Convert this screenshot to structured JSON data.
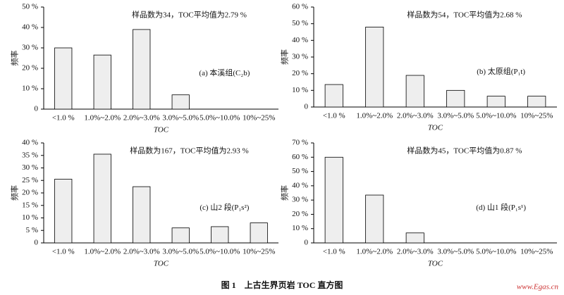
{
  "chart_data": [
    {
      "type": "bar",
      "annotation": "样品数为34，TOC平均值为2.79 %",
      "panel_label": "(a) 本溪组(C₂b)",
      "y_label": "频率",
      "x_label": "TOC",
      "categories": [
        "<1.0 %",
        "1.0%~2.0%",
        "2.0%~3.0%",
        "3.0%~5.0%",
        "5.0%~10.0%",
        "10%~25%"
      ],
      "values": [
        30,
        26.5,
        39,
        7,
        0,
        0
      ],
      "color": "#eeeeee",
      "ylim": [
        0,
        50
      ],
      "yticks": [
        0,
        {
          "value": 10,
          "label": "10 %"
        },
        {
          "value": 20,
          "label": "20 %"
        },
        {
          "value": 30,
          "label": "30 %"
        },
        {
          "value": 40,
          "label": "40 %"
        },
        {
          "value": 50,
          "label": "50 %"
        }
      ]
    },
    {
      "type": "bar",
      "annotation": "样品数为54，TOC平均值为2.68 %",
      "panel_label": "(b) 太原组(P₁t)",
      "y_label": "频率",
      "x_label": "TOC",
      "categories": [
        "<1.0 %",
        "1.0%~2.0%",
        "2.0%~3.0%",
        "3.0%~5.0%",
        "5.0%~10.0%",
        "10%~25%"
      ],
      "values": [
        13.5,
        48,
        19,
        10,
        6.5,
        6.5
      ],
      "color": "#eeeeee",
      "ylim": [
        0,
        60
      ],
      "yticks": [
        0,
        {
          "value": 10,
          "label": "10 %"
        },
        {
          "value": 20,
          "label": "20 %"
        },
        {
          "value": 30,
          "label": "30 %"
        },
        {
          "value": 40,
          "label": "40 %"
        },
        {
          "value": 50,
          "label": "50 %"
        },
        {
          "value": 60,
          "label": "60 %"
        }
      ]
    },
    {
      "type": "bar",
      "annotation": "样品数为167，TOC平均值为2.93 %",
      "panel_label": "(c) 山2 段(P₁s²)",
      "y_label": "频率",
      "x_label": "TOC",
      "categories": [
        "<1.0 %",
        "1.0%~2.0%",
        "2.0%~3.0%",
        "3.0%~5.0%",
        "5.0%~10.0%",
        "10%~25%"
      ],
      "values": [
        25.5,
        35.5,
        22.5,
        6,
        6.5,
        8
      ],
      "color": "#eeeeee",
      "ylim": [
        0,
        40
      ],
      "yticks": [
        0,
        {
          "value": 5,
          "label": "5 %"
        },
        {
          "value": 10,
          "label": "10 %"
        },
        {
          "value": 15,
          "label": "15 %"
        },
        {
          "value": 20,
          "label": "20 %"
        },
        {
          "value": 25,
          "label": "25 %"
        },
        {
          "value": 30,
          "label": "30 %"
        },
        {
          "value": 35,
          "label": "35 %"
        },
        {
          "value": 40,
          "label": "40 %"
        }
      ]
    },
    {
      "type": "bar",
      "annotation": "样品数为45，TOC平均值为0.87 %",
      "panel_label": "(d) 山1 段(P₁s¹)",
      "y_label": "频率",
      "x_label": "TOC",
      "categories": [
        "<1.0 %",
        "1.0%~2.0%",
        "2.0%~3.0%",
        "3.0%~5.0%",
        "5.0%~10.0%",
        "10%~25%"
      ],
      "values": [
        60,
        33.5,
        7,
        0,
        0,
        0
      ],
      "color": "#eeeeee",
      "ylim": [
        0,
        70
      ],
      "yticks": [
        0,
        {
          "value": 10,
          "label": "10 %"
        },
        {
          "value": 20,
          "label": "20 %"
        },
        {
          "value": 30,
          "label": "30 %"
        },
        {
          "value": 40,
          "label": "40 %"
        },
        {
          "value": 50,
          "label": "50 %"
        },
        {
          "value": 60,
          "label": "60 %"
        },
        {
          "value": 70,
          "label": "70 %"
        }
      ]
    }
  ],
  "caption": "图 1　上古生界页岩 TOC 直方图",
  "watermark": "www.Egas.cn"
}
